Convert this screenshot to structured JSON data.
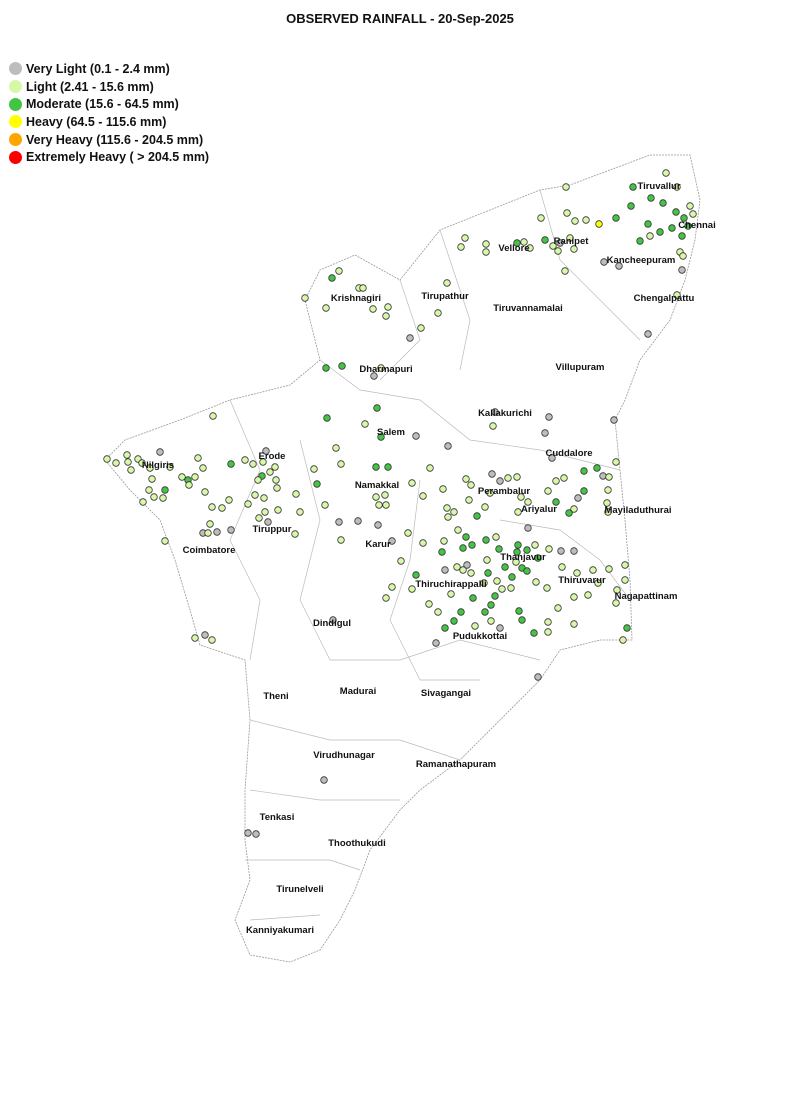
{
  "title": "OBSERVED RAINFALL - 20-Sep-2025",
  "legend": [
    {
      "label": "Very Light (0.1 - 2.4 mm)",
      "color": "#bdbdbd"
    },
    {
      "label": "Light (2.41 - 15.6 mm)",
      "color": "#d9f7a8"
    },
    {
      "label": "Moderate (15.6 - 64.5 mm)",
      "color": "#44c444"
    },
    {
      "label": "Heavy (64.5 - 115.6 mm)",
      "color": "#ffff00"
    },
    {
      "label": "Very Heavy (115.6 - 204.5 mm)",
      "color": "#ffa500"
    },
    {
      "label": "Extremely Heavy ( > 204.5 mm)",
      "color": "#ff0000"
    }
  ],
  "districts": [
    "Tiruvallur",
    "Chennai",
    "Ranipet",
    "Vellore",
    "Kancheepuram",
    "Chengalpattu",
    "Krishnagiri",
    "Tirupathur",
    "Tiruvannamalai",
    "Dharmapuri",
    "Villupuram",
    "Kallakurichi",
    "Salem",
    "Nilgiris",
    "Erode",
    "Cuddalore",
    "Namakkal",
    "Perambalur",
    "Ariyalur",
    "Mayiladuthurai",
    "Coimbatore",
    "Tiruppur",
    "Karur",
    "Thanjavur",
    "Thiruchirappalli",
    "Thiruvarur",
    "Nagapattinam",
    "Dindigul",
    "Pudukkottai",
    "Theni",
    "Madurai",
    "Sivagangai",
    "Virudhunagar",
    "Ramanathapuram",
    "Tenkasi",
    "Thoothukudi",
    "Tirunelveli",
    "Kanniyakumari"
  ]
}
